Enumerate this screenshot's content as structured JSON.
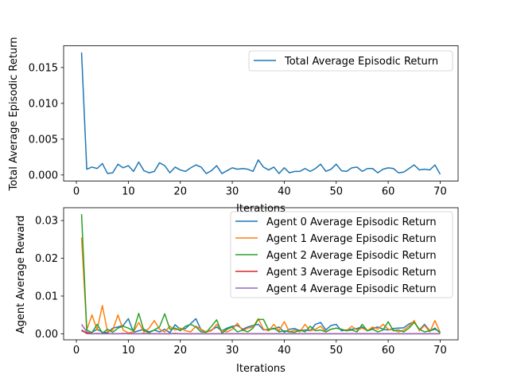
{
  "chart_data": [
    {
      "type": "line",
      "title": "",
      "xlabel": "Iterations",
      "ylabel": "Total Average Episodic Return",
      "xlim": [
        -2.45,
        73.45
      ],
      "ylim": [
        -0.00085,
        0.01804
      ],
      "xticks": [
        0,
        10,
        20,
        30,
        40,
        50,
        60,
        70
      ],
      "xtick_labels": [
        "0",
        "10",
        "20",
        "30",
        "40",
        "50",
        "60",
        "70"
      ],
      "yticks": [
        0,
        0.005,
        0.01,
        0.015
      ],
      "ytick_labels": [
        "0.000",
        "0.005",
        "0.010",
        "0.015"
      ],
      "grid": false,
      "legend_position": "upper right",
      "series": [
        {
          "name": "Total Average Episodic Return",
          "color": "#1f77b4",
          "x": [
            1,
            2,
            3,
            4,
            5,
            6,
            7,
            8,
            9,
            10,
            11,
            12,
            13,
            14,
            15,
            16,
            17,
            18,
            19,
            20,
            21,
            22,
            23,
            24,
            25,
            26,
            27,
            28,
            29,
            30,
            31,
            32,
            33,
            34,
            35,
            36,
            37,
            38,
            39,
            40,
            41,
            42,
            43,
            44,
            45,
            46,
            47,
            48,
            49,
            50,
            51,
            52,
            53,
            54,
            55,
            56,
            57,
            58,
            59,
            60,
            61,
            62,
            63,
            64,
            65,
            66,
            67,
            68,
            69,
            70
          ],
          "values": [
            0.0171,
            0.0008,
            0.0011,
            0.0009,
            0.0016,
            0.0002,
            0.0003,
            0.0015,
            0.001,
            0.0013,
            0.0005,
            0.0018,
            0.0006,
            0.0003,
            0.0005,
            0.0017,
            0.0013,
            0.0003,
            0.0011,
            0.0007,
            0.0005,
            0.001,
            0.0014,
            0.0011,
            0.0002,
            0.0006,
            0.0013,
            0.0002,
            0.0006,
            0.001,
            0.0008,
            0.0009,
            0.0008,
            0.0005,
            0.0021,
            0.0011,
            0.0007,
            0.0011,
            0.0002,
            0.001,
            0.0003,
            0.0005,
            0.0005,
            0.0009,
            0.0005,
            0.0009,
            0.0015,
            0.0005,
            0.0008,
            0.0015,
            0.0006,
            0.0005,
            0.001,
            0.0011,
            0.0005,
            0.0009,
            0.0009,
            0.0003,
            0.0008,
            0.001,
            0.0009,
            0.0003,
            0.0004,
            0.0009,
            0.0014,
            0.0007,
            0.0008,
            0.0007,
            0.0014,
            0.0001
          ]
        }
      ]
    },
    {
      "type": "line",
      "title": "",
      "xlabel": "Iterations",
      "ylabel": "Agent Average Reward",
      "xlim": [
        -2.45,
        73.45
      ],
      "ylim": [
        -0.0016,
        0.0334
      ],
      "xticks": [
        0,
        10,
        20,
        30,
        40,
        50,
        60,
        70
      ],
      "xtick_labels": [
        "0",
        "10",
        "20",
        "30",
        "40",
        "50",
        "60",
        "70"
      ],
      "yticks": [
        0,
        0.01,
        0.02,
        0.03
      ],
      "ytick_labels": [
        "0.00",
        "0.01",
        "0.02",
        "0.03"
      ],
      "grid": false,
      "legend_position": "upper right",
      "series": [
        {
          "name": "Agent 0 Average Episodic Return",
          "color": "#1f77b4",
          "x": [
            1,
            2,
            3,
            4,
            5,
            6,
            7,
            8,
            9,
            10,
            11,
            12,
            13,
            14,
            15,
            16,
            17,
            18,
            19,
            20,
            21,
            22,
            23,
            24,
            25,
            26,
            27,
            28,
            29,
            30,
            31,
            32,
            33,
            34,
            35,
            36,
            37,
            38,
            39,
            40,
            41,
            42,
            43,
            44,
            45,
            46,
            47,
            48,
            49,
            50,
            51,
            52,
            53,
            54,
            55,
            56,
            57,
            58,
            59,
            60,
            61,
            62,
            63,
            64,
            65,
            66,
            67,
            68,
            69,
            70
          ],
          "values": [
            0.0008,
            0.0002,
            0.0004,
            0.0012,
            0.0004,
            0.0003,
            0.0015,
            0.0018,
            0.0022,
            0.004,
            0.0004,
            0.0008,
            0.0012,
            0.0005,
            0.001,
            0.0005,
            0.0012,
            0.0003,
            0.0024,
            0.0012,
            0.0014,
            0.0027,
            0.004,
            0.001,
            0.0005,
            0.001,
            0.0018,
            0.0008,
            0.0015,
            0.002,
            0.0022,
            0.0012,
            0.0018,
            0.0022,
            0.0025,
            0.001,
            0.0012,
            0.0013,
            0.0018,
            0.0004,
            0.0012,
            0.0014,
            0.0008,
            0.001,
            0.0008,
            0.0025,
            0.003,
            0.001,
            0.0022,
            0.0025,
            0.0008,
            0.001,
            0.0012,
            0.0014,
            0.0018,
            0.0008,
            0.0014,
            0.0018,
            0.0012,
            0.001,
            0.0014,
            0.0015,
            0.0016,
            0.0026,
            0.0032,
            0.001,
            0.0025,
            0.0008,
            0.0015,
            0.0002
          ]
        },
        {
          "name": "Agent 1 Average Episodic Return",
          "color": "#ff7f0e",
          "x": [
            1,
            2,
            3,
            4,
            5,
            6,
            7,
            8,
            9,
            10,
            11,
            12,
            13,
            14,
            15,
            16,
            17,
            18,
            19,
            20,
            21,
            22,
            23,
            24,
            25,
            26,
            27,
            28,
            29,
            30,
            31,
            32,
            33,
            34,
            35,
            36,
            37,
            38,
            39,
            40,
            41,
            42,
            43,
            44,
            45,
            46,
            47,
            48,
            49,
            50,
            51,
            52,
            53,
            54,
            55,
            56,
            57,
            58,
            59,
            60,
            61,
            62,
            63,
            64,
            65,
            66,
            67,
            68,
            69,
            70
          ],
          "values": [
            0.0255,
            0.001,
            0.005,
            0.001,
            0.0075,
            0.0005,
            0.001,
            0.005,
            0.001,
            0.0002,
            0.0005,
            0.003,
            0.0005,
            0.0015,
            0.0035,
            0.0012,
            0.0005,
            0.002,
            0.001,
            0.0015,
            0.0008,
            0.0005,
            0.002,
            0.0012,
            0.0005,
            0.0008,
            0.0025,
            0.0008,
            0.0005,
            0.0012,
            0.0028,
            0.0008,
            0.0015,
            0.0018,
            0.004,
            0.0012,
            0.0008,
            0.0025,
            0.0008,
            0.0032,
            0.0005,
            0.001,
            0.0005,
            0.0025,
            0.0008,
            0.0012,
            0.002,
            0.0005,
            0.0012,
            0.0015,
            0.0012,
            0.0008,
            0.002,
            0.001,
            0.0015,
            0.0008,
            0.0018,
            0.0012,
            0.0025,
            0.0012,
            0.001,
            0.0005,
            0.001,
            0.002,
            0.0035,
            0.0008,
            0.0022,
            0.0005,
            0.0035,
            0.0003
          ]
        },
        {
          "name": "Agent 2 Average Episodic Return",
          "color": "#2ca02c",
          "x": [
            1,
            2,
            3,
            4,
            5,
            6,
            7,
            8,
            9,
            10,
            11,
            12,
            13,
            14,
            15,
            16,
            17,
            18,
            19,
            20,
            21,
            22,
            23,
            24,
            25,
            26,
            27,
            28,
            29,
            30,
            31,
            32,
            33,
            34,
            35,
            36,
            37,
            38,
            39,
            40,
            41,
            42,
            43,
            44,
            45,
            46,
            47,
            48,
            49,
            50,
            51,
            52,
            53,
            54,
            55,
            56,
            57,
            58,
            59,
            60,
            61,
            62,
            63,
            64,
            65,
            66,
            67,
            68,
            69,
            70
          ],
          "values": [
            0.0317,
            0.001,
            0.0003,
            0.0025,
            0.0002,
            0.0012,
            0.0004,
            0.0015,
            0.002,
            0.0015,
            0.0008,
            0.0054,
            0.0008,
            0.0003,
            0.001,
            0.0018,
            0.0053,
            0.0012,
            0.0015,
            0.0008,
            0.002,
            0.0025,
            0.0018,
            0.0005,
            0.0004,
            0.002,
            0.0037,
            0.0002,
            0.0012,
            0.0018,
            0.0005,
            0.001,
            0.0005,
            0.0015,
            0.0038,
            0.0038,
            0.001,
            0.0015,
            0.0005,
            0.0008,
            0.0005,
            0.0004,
            0.001,
            0.0005,
            0.002,
            0.0008,
            0.001,
            0.0005,
            0.0012,
            0.0015,
            0.0012,
            0.0008,
            0.001,
            0.0005,
            0.0025,
            0.0008,
            0.0012,
            0.0005,
            0.001,
            0.0032,
            0.0008,
            0.001,
            0.0005,
            0.0015,
            0.003,
            0.0012,
            0.0005,
            0.0008,
            0.0012,
            0.0005
          ]
        },
        {
          "name": "Agent 3 Average Episodic Return",
          "color": "#d62728",
          "x": [
            1,
            2,
            3,
            4,
            5,
            6,
            7,
            8,
            9,
            10,
            11,
            12,
            13,
            14,
            15,
            16,
            17,
            18,
            19,
            20,
            21,
            22,
            23,
            24,
            25,
            26,
            27,
            28,
            29,
            30,
            31,
            32,
            33,
            34,
            35,
            36,
            37,
            38,
            39,
            40,
            41,
            42,
            43,
            44,
            45,
            46,
            47,
            48,
            49,
            50,
            51,
            52,
            53,
            54,
            55,
            56,
            57,
            58,
            59,
            60,
            61,
            62,
            63,
            64,
            65,
            66,
            67,
            68,
            69,
            70
          ],
          "values": [
            0.001,
            0.0001,
            0.0,
            0.0001,
            0.0,
            0.0001,
            0.0,
            0.0,
            0.0001,
            0.0,
            0.0,
            0.0,
            0.0001,
            0.0,
            0.0,
            0.0,
            0.0,
            0.0,
            0.0001,
            0.0,
            0.0,
            0.0,
            0.0,
            0.0,
            0.0,
            0.0,
            0.0,
            0.0,
            0.0,
            0.0,
            0.0,
            0.0,
            0.0,
            0.0,
            0.0,
            0.0,
            0.0,
            0.0,
            0.0,
            0.0,
            0.0,
            0.0,
            0.0,
            0.0,
            0.0,
            0.0,
            0.0,
            0.0,
            0.0,
            0.0,
            0.0,
            0.0,
            0.0,
            0.0,
            0.0,
            0.0,
            0.0,
            0.0,
            0.0,
            0.0,
            0.0,
            0.0,
            0.0,
            0.0,
            0.0,
            0.0,
            0.0,
            0.0,
            0.0,
            0.0
          ]
        },
        {
          "name": "Agent 4 Average Episodic Return",
          "color": "#9467bd",
          "x": [
            1,
            2,
            3,
            4,
            5,
            6,
            7,
            8,
            9,
            10,
            11,
            12,
            13,
            14,
            15,
            16,
            17,
            18,
            19,
            20,
            21,
            22,
            23,
            24,
            25,
            26,
            27,
            28,
            29,
            30,
            31,
            32,
            33,
            34,
            35,
            36,
            37,
            38,
            39,
            40,
            41,
            42,
            43,
            44,
            45,
            46,
            47,
            48,
            49,
            50,
            51,
            52,
            53,
            54,
            55,
            56,
            57,
            58,
            59,
            60,
            61,
            62,
            63,
            64,
            65,
            66,
            67,
            68,
            69,
            70
          ],
          "values": [
            0.0025,
            0.0005,
            0.0,
            0.0,
            0.0,
            0.0,
            0.0,
            0.0,
            0.0,
            0.0,
            0.0,
            0.0,
            0.0,
            0.0,
            0.0,
            0.0,
            0.0,
            0.0,
            0.0,
            0.0,
            0.0,
            0.0,
            0.0,
            0.0,
            0.0,
            0.0,
            0.0,
            0.0,
            0.0,
            0.0,
            0.0,
            0.0,
            0.0,
            0.0,
            0.0,
            0.0,
            0.0,
            0.0,
            0.0,
            0.0,
            0.0,
            0.0,
            0.0,
            0.0,
            0.0,
            0.0,
            0.0,
            0.0,
            0.0,
            0.0,
            0.0,
            0.0,
            0.0,
            0.0,
            0.0,
            0.0,
            0.0,
            0.0,
            0.0,
            0.0,
            0.0,
            0.0,
            0.0,
            0.0,
            0.0,
            0.0,
            0.0,
            0.0,
            0.0,
            0.0
          ]
        }
      ]
    }
  ]
}
